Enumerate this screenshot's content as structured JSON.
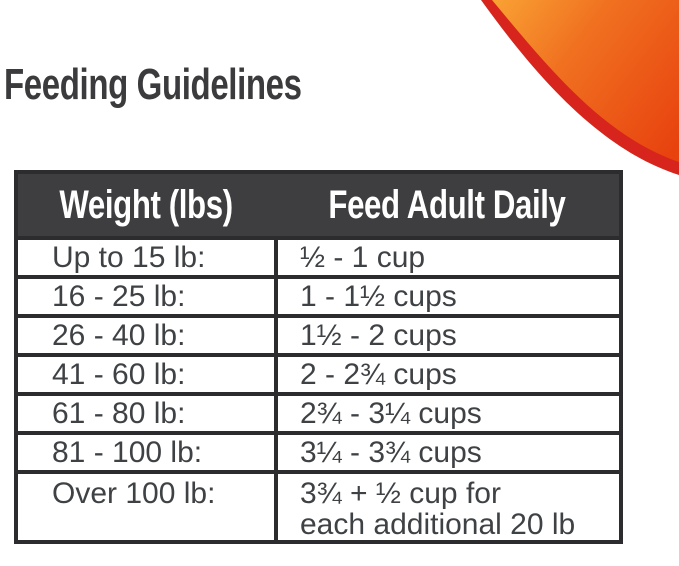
{
  "title": "Feeding Guidelines",
  "colors": {
    "header_bg": "#3e3e40",
    "border": "#2c2c2e",
    "text": "#3f4245",
    "title_text": "#3b3b3d",
    "swoosh_light": "#f9a033",
    "swoosh_mid": "#f07020",
    "swoosh_deep": "#e8430f",
    "swoosh_red": "#d7241c",
    "page_bg": "#ffffff"
  },
  "decor": {
    "swoosh_name": "orange-corner-swoosh"
  },
  "table": {
    "columns": [
      "Weight (lbs)",
      "Feed Adult Daily"
    ],
    "rows": [
      {
        "weight": "Up to 15 lb:",
        "amount": "½ - 1 cup"
      },
      {
        "weight": "16 - 25 lb:",
        "amount": "1 - 1½ cups"
      },
      {
        "weight": "26 - 40 lb:",
        "amount": "1½ - 2 cups"
      },
      {
        "weight": "41 - 60 lb:",
        "amount": "2 - 2¾ cups"
      },
      {
        "weight": "61 - 80 lb:",
        "amount": "2¾ - 3¼ cups"
      },
      {
        "weight": "81 - 100 lb:",
        "amount": "3¼ - 3¾ cups"
      },
      {
        "weight": "Over 100 lb:",
        "amount": "3¾ + ½ cup for\neach additional 20 lb"
      }
    ]
  }
}
